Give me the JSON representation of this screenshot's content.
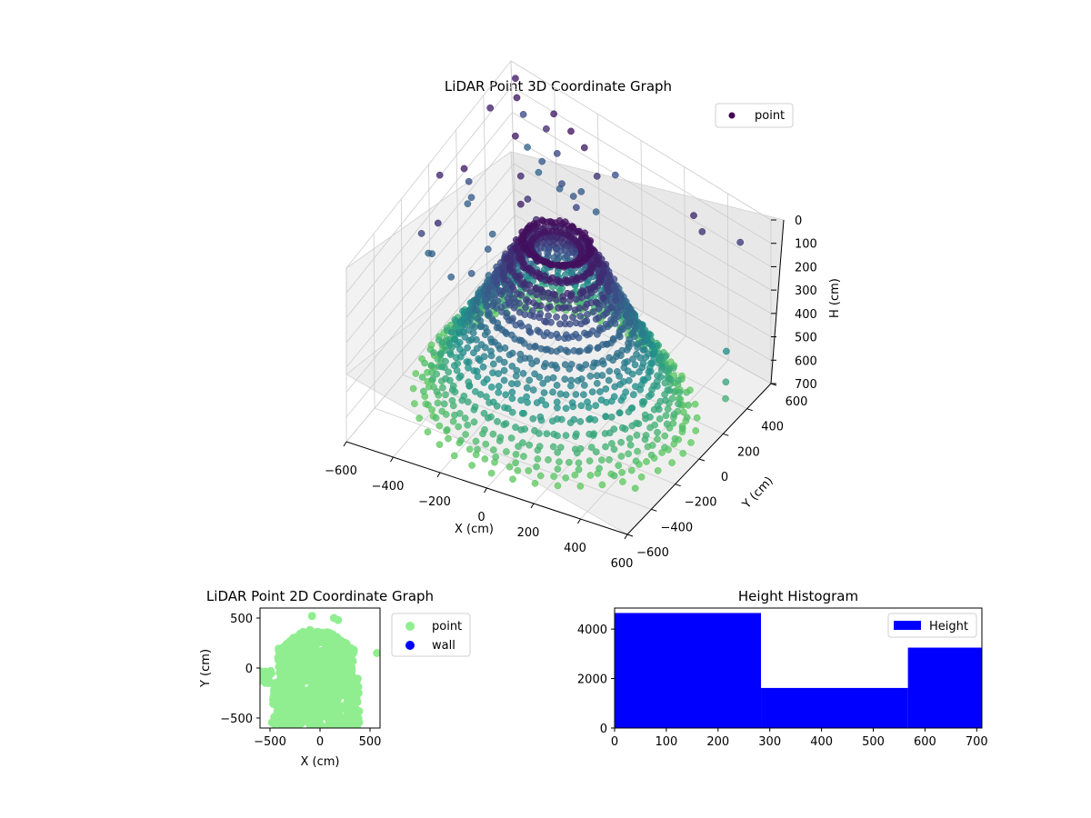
{
  "figure": {
    "background": "#ffffff"
  },
  "chart_data": [
    {
      "type": "scatter",
      "title": "LiDAR Point 3D Coordinate Graph",
      "xlabel": "X (cm)",
      "ylabel": "Y (cm)",
      "zlabel": "H (cm)",
      "xlim": [
        -600,
        600
      ],
      "ylim": [
        -600,
        600
      ],
      "zlim": [
        700,
        0
      ],
      "z_axis_inverted": true,
      "x_ticks": [
        "−600",
        "−400",
        "−200",
        "0",
        "200",
        "400",
        "600"
      ],
      "y_ticks": [
        "−600",
        "−400",
        "−200",
        "0",
        "200",
        "400",
        "600"
      ],
      "z_ticks": [
        "0",
        "100",
        "200",
        "300",
        "400",
        "500",
        "600",
        "700"
      ],
      "grid": true,
      "colormap": "viridis",
      "legend": {
        "position": "upper right",
        "entries": [
          {
            "label": "point",
            "color": "#440154"
          }
        ]
      },
      "series": [
        {
          "name": "point",
          "note_color_by": "height",
          "shape": "truncated cone of ring scans widening toward the ground plus sparse outliers"
        }
      ]
    },
    {
      "type": "scatter",
      "title": "LiDAR Point 2D Coordinate Graph",
      "xlabel": "X (cm)",
      "ylabel": "Y (cm)",
      "xlim": [
        -600,
        600
      ],
      "ylim": [
        -600,
        600
      ],
      "x_ticks": [
        "−500",
        "0",
        "500"
      ],
      "y_ticks": [
        "−500",
        "0",
        "500"
      ],
      "legend": {
        "position": "outside right",
        "entries": [
          {
            "label": "point",
            "color": "#90ee90"
          },
          {
            "label": "wall",
            "color": "#0000ff"
          }
        ]
      },
      "series": [
        {
          "name": "point",
          "color": "#90ee90"
        },
        {
          "name": "wall",
          "color": "#0000ff",
          "values": []
        }
      ]
    },
    {
      "type": "bar",
      "title": "Height Histogram",
      "xlabel": "",
      "ylabel": "",
      "xlim": [
        0,
        710
      ],
      "ylim": [
        0,
        4850
      ],
      "x_ticks": [
        "0",
        "100",
        "200",
        "300",
        "400",
        "500",
        "600",
        "700"
      ],
      "y_ticks": [
        "0",
        "2000",
        "4000"
      ],
      "bins": [
        [
          0,
          283
        ],
        [
          283,
          567
        ],
        [
          567,
          710
        ]
      ],
      "values": [
        4650,
        1620,
        3250
      ],
      "color": "#0000ff",
      "legend": {
        "position": "upper right",
        "entries": [
          {
            "label": "Height",
            "color": "#0000ff"
          }
        ]
      }
    }
  ]
}
